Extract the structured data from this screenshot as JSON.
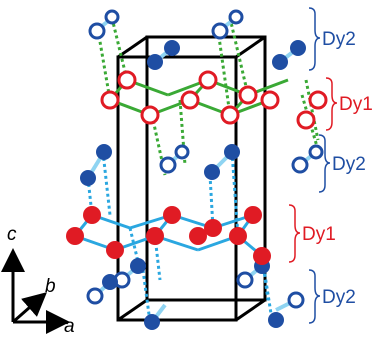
{
  "colors": {
    "dy2": "#1f4ea3",
    "dy1": "#e01b24",
    "green": "#3aa935",
    "cyan": "#2aa7e0",
    "cell": "#000000"
  },
  "labels": {
    "layer_1": "Dy2",
    "layer_2": "Dy1",
    "layer_3": "Dy2",
    "layer_4": "Dy1",
    "layer_5": "Dy2"
  },
  "axes": {
    "c": "c",
    "b": "b",
    "a": "a"
  }
}
